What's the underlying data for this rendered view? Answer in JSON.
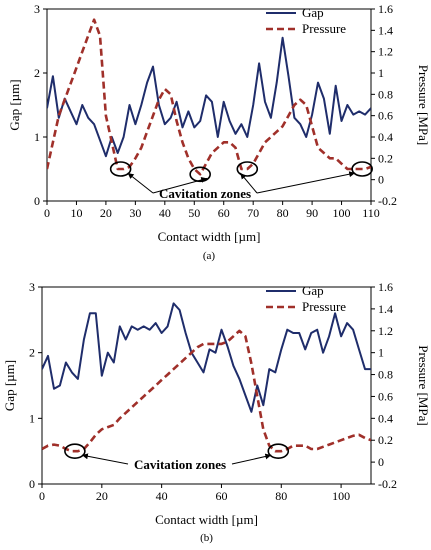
{
  "chart_data": [
    {
      "type": "line",
      "panel_label": "(a)",
      "xlabel": "Contact width [µm]",
      "ylabel": "Gap [µm]",
      "y2label": "Pressure [MPa]",
      "xlim": [
        0,
        110
      ],
      "ylim": [
        0,
        3
      ],
      "y2lim": [
        -0.2,
        1.6
      ],
      "xticks": [
        "0",
        "10",
        "20",
        "30",
        "40",
        "50",
        "60",
        "70",
        "80",
        "90",
        "100",
        "110"
      ],
      "yticks": [
        "0",
        "1",
        "2",
        "3"
      ],
      "y2ticks": [
        "-0.2",
        "0",
        "0.2",
        "0.4",
        "0.6",
        "0.8",
        "1",
        "1.2",
        "1.4",
        "1.6"
      ],
      "legend": {
        "position": "top-right"
      },
      "annotation": "Cavitation zones",
      "cavitation_x": [
        25,
        52,
        68,
        107
      ],
      "series": [
        {
          "name": "Gap",
          "axis": "left",
          "color": "#1f2d6b",
          "style": "solid",
          "x": [
            0,
            2,
            4,
            6,
            8,
            10,
            12,
            14,
            16,
            18,
            20,
            22,
            24,
            26,
            28,
            30,
            32,
            34,
            36,
            38,
            40,
            42,
            44,
            46,
            48,
            50,
            52,
            54,
            56,
            58,
            60,
            62,
            64,
            66,
            68,
            70,
            72,
            74,
            76,
            78,
            80,
            82,
            84,
            86,
            88,
            90,
            92,
            94,
            96,
            98,
            100,
            102,
            104,
            106,
            108,
            110
          ],
          "y": [
            1.45,
            1.95,
            1.3,
            1.6,
            1.4,
            1.2,
            1.5,
            1.3,
            1.2,
            0.95,
            0.7,
            1.0,
            0.75,
            1.0,
            1.5,
            1.2,
            1.5,
            1.85,
            2.1,
            1.5,
            1.2,
            1.3,
            1.55,
            1.15,
            1.4,
            1.15,
            1.25,
            1.65,
            1.55,
            1.0,
            1.55,
            1.25,
            1.05,
            1.2,
            1.0,
            1.5,
            2.15,
            1.55,
            1.3,
            1.85,
            2.55,
            1.95,
            1.3,
            1.2,
            1.0,
            1.35,
            1.85,
            1.6,
            1.05,
            1.8,
            1.25,
            1.5,
            1.35,
            1.4,
            1.35,
            1.45
          ]
        },
        {
          "name": "Pressure",
          "axis": "right",
          "color": "#a0302a",
          "style": "dashed",
          "x": [
            0,
            2,
            4,
            6,
            8,
            10,
            12,
            14,
            16,
            18,
            20,
            22,
            24,
            26,
            28,
            30,
            32,
            34,
            36,
            38,
            40,
            42,
            44,
            46,
            48,
            50,
            52,
            54,
            56,
            58,
            60,
            62,
            64,
            66,
            68,
            70,
            72,
            74,
            76,
            78,
            80,
            82,
            84,
            86,
            88,
            90,
            92,
            94,
            96,
            98,
            100,
            102,
            104,
            106,
            108,
            110
          ],
          "y": [
            0.1,
            0.35,
            0.6,
            0.75,
            0.9,
            1.05,
            1.2,
            1.35,
            1.5,
            1.35,
            0.6,
            0.35,
            0.1,
            0.1,
            0.12,
            0.2,
            0.3,
            0.45,
            0.6,
            0.75,
            0.85,
            0.8,
            0.55,
            0.35,
            0.2,
            0.1,
            0.05,
            0.15,
            0.25,
            0.3,
            0.35,
            0.35,
            0.3,
            0.1,
            0.1,
            0.15,
            0.25,
            0.35,
            0.4,
            0.45,
            0.5,
            0.6,
            0.7,
            0.75,
            0.7,
            0.5,
            0.3,
            0.25,
            0.2,
            0.2,
            0.15,
            0.1,
            0.1,
            0.1,
            0.1,
            0.12
          ]
        }
      ]
    },
    {
      "type": "line",
      "panel_label": "(b)",
      "xlabel": "Contact width [µm]",
      "ylabel": "Gap [µm]",
      "y2label": "Pressure [MPa]",
      "xlim": [
        0,
        110
      ],
      "ylim": [
        0,
        3
      ],
      "y2lim": [
        -0.2,
        1.6
      ],
      "xticks": [
        "0",
        "20",
        "40",
        "60",
        "80",
        "100"
      ],
      "yticks": [
        "0",
        "1",
        "2",
        "3"
      ],
      "y2ticks": [
        "-0.2",
        "0",
        "0.2",
        "0.4",
        "0.6",
        "0.8",
        "1",
        "1.2",
        "1.4",
        "1.6"
      ],
      "legend": {
        "position": "top-right"
      },
      "annotation": "Cavitation zones",
      "cavitation_x": [
        11,
        79
      ],
      "series": [
        {
          "name": "Gap",
          "axis": "left",
          "color": "#1f2d6b",
          "style": "solid",
          "x": [
            0,
            2,
            4,
            6,
            8,
            10,
            12,
            14,
            16,
            18,
            20,
            22,
            24,
            26,
            28,
            30,
            32,
            34,
            36,
            38,
            40,
            42,
            44,
            46,
            48,
            50,
            52,
            54,
            56,
            58,
            60,
            62,
            64,
            66,
            68,
            70,
            72,
            74,
            76,
            78,
            80,
            82,
            84,
            86,
            88,
            90,
            92,
            94,
            96,
            98,
            100,
            102,
            104,
            106,
            108,
            110
          ],
          "y": [
            1.75,
            1.95,
            1.45,
            1.5,
            1.85,
            1.7,
            1.6,
            2.2,
            2.6,
            2.6,
            1.65,
            2.0,
            1.85,
            2.4,
            2.2,
            2.4,
            2.35,
            2.4,
            2.35,
            2.45,
            2.3,
            2.4,
            2.75,
            2.65,
            2.3,
            2.0,
            1.85,
            1.7,
            2.05,
            2.0,
            2.35,
            2.1,
            1.8,
            1.6,
            1.35,
            1.1,
            1.5,
            1.2,
            1.75,
            1.7,
            2.05,
            2.35,
            2.3,
            2.3,
            2.05,
            2.3,
            2.35,
            2.0,
            2.25,
            2.6,
            2.25,
            2.45,
            2.35,
            2.05,
            1.75,
            1.75
          ]
        },
        {
          "name": "Pressure",
          "axis": "right",
          "color": "#a0302a",
          "style": "dashed",
          "x": [
            0,
            2,
            4,
            6,
            8,
            10,
            12,
            14,
            16,
            18,
            20,
            22,
            24,
            26,
            28,
            30,
            32,
            34,
            36,
            38,
            40,
            42,
            44,
            46,
            48,
            50,
            52,
            54,
            56,
            58,
            60,
            62,
            64,
            66,
            68,
            70,
            72,
            74,
            76,
            78,
            80,
            82,
            84,
            86,
            88,
            90,
            92,
            94,
            96,
            98,
            100,
            102,
            104,
            106,
            108,
            110
          ],
          "y": [
            0.12,
            0.15,
            0.16,
            0.15,
            0.12,
            0.1,
            0.1,
            0.12,
            0.18,
            0.25,
            0.3,
            0.32,
            0.34,
            0.4,
            0.45,
            0.5,
            0.55,
            0.6,
            0.65,
            0.7,
            0.75,
            0.8,
            0.85,
            0.9,
            0.95,
            1.0,
            1.05,
            1.08,
            1.08,
            1.08,
            1.08,
            1.1,
            1.15,
            1.2,
            1.15,
            0.9,
            0.6,
            0.3,
            0.15,
            0.1,
            0.1,
            0.12,
            0.15,
            0.15,
            0.15,
            0.12,
            0.12,
            0.14,
            0.16,
            0.18,
            0.2,
            0.22,
            0.24,
            0.25,
            0.22,
            0.2
          ]
        }
      ]
    }
  ]
}
